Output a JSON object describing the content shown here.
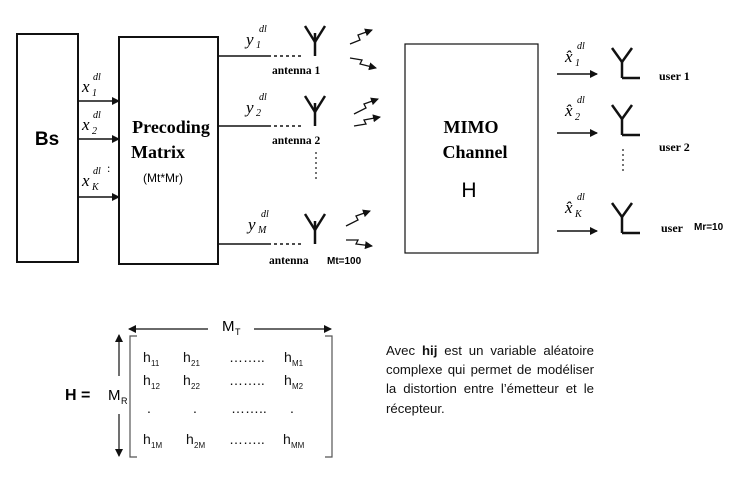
{
  "diagram": {
    "bs_label": "Bs",
    "precoding": {
      "line1": "Precoding",
      "line2": "Matrix",
      "dims": "(Mt*Mr)"
    },
    "inputs": [
      {
        "base": "x",
        "sub": "1",
        "sup": "dl"
      },
      {
        "base": "x",
        "sub": "2",
        "sup": "dl"
      },
      {
        "base": "x",
        "sub": "K",
        "sup": "dl"
      }
    ],
    "input_dots": ":",
    "outputs": [
      {
        "base": "y",
        "sub": "1",
        "sup": "dl"
      },
      {
        "base": "y",
        "sub": "2",
        "sup": "dl"
      },
      {
        "base": "y",
        "sub": "M",
        "sup": "dl"
      }
    ],
    "antennas": [
      "antenna 1",
      "antenna 2",
      "antenna"
    ],
    "mt_label": "Mt=100",
    "channel": {
      "line1": "MIMO",
      "line2": "Channel",
      "symbol": "H"
    },
    "estimates": [
      {
        "base": "x̂",
        "sub": "1",
        "sup": "dl"
      },
      {
        "base": "x̂",
        "sub": "2",
        "sup": "dl"
      },
      {
        "base": "x̂",
        "sub": "K",
        "sup": "dl"
      }
    ],
    "users": [
      "user 1",
      "user 2",
      "user"
    ],
    "mr_label": "Mr=10"
  },
  "matrix": {
    "lhs": "H =",
    "row_dim": {
      "base": "M",
      "sub": "R"
    },
    "col_dim": {
      "base": "M",
      "sub": "T"
    },
    "rows": [
      [
        {
          "b": "h",
          "s": "11"
        },
        {
          "b": "h",
          "s": "21"
        },
        {
          "b": "……..",
          "s": ""
        },
        {
          "b": "h",
          "s": "M1"
        }
      ],
      [
        {
          "b": "h",
          "s": "12"
        },
        {
          "b": "h",
          "s": "22"
        },
        {
          "b": "……..",
          "s": ""
        },
        {
          "b": "h",
          "s": "M2"
        }
      ],
      [
        {
          "b": ".",
          "s": ""
        },
        {
          "b": ".",
          "s": ""
        },
        {
          "b": "……..",
          "s": ""
        },
        {
          "b": ".",
          "s": ""
        }
      ],
      [
        {
          "b": "h",
          "s": "1M"
        },
        {
          "b": "h",
          "s": "2M"
        },
        {
          "b": "……..",
          "s": ""
        },
        {
          "b": "h",
          "s": "MM"
        }
      ]
    ]
  },
  "description": {
    "prefix": "Avec ",
    "bold": "hij",
    "rest": " est un variable aléatoire complexe qui permet de modéliser la distortion entre l’émetteur et le récepteur."
  }
}
